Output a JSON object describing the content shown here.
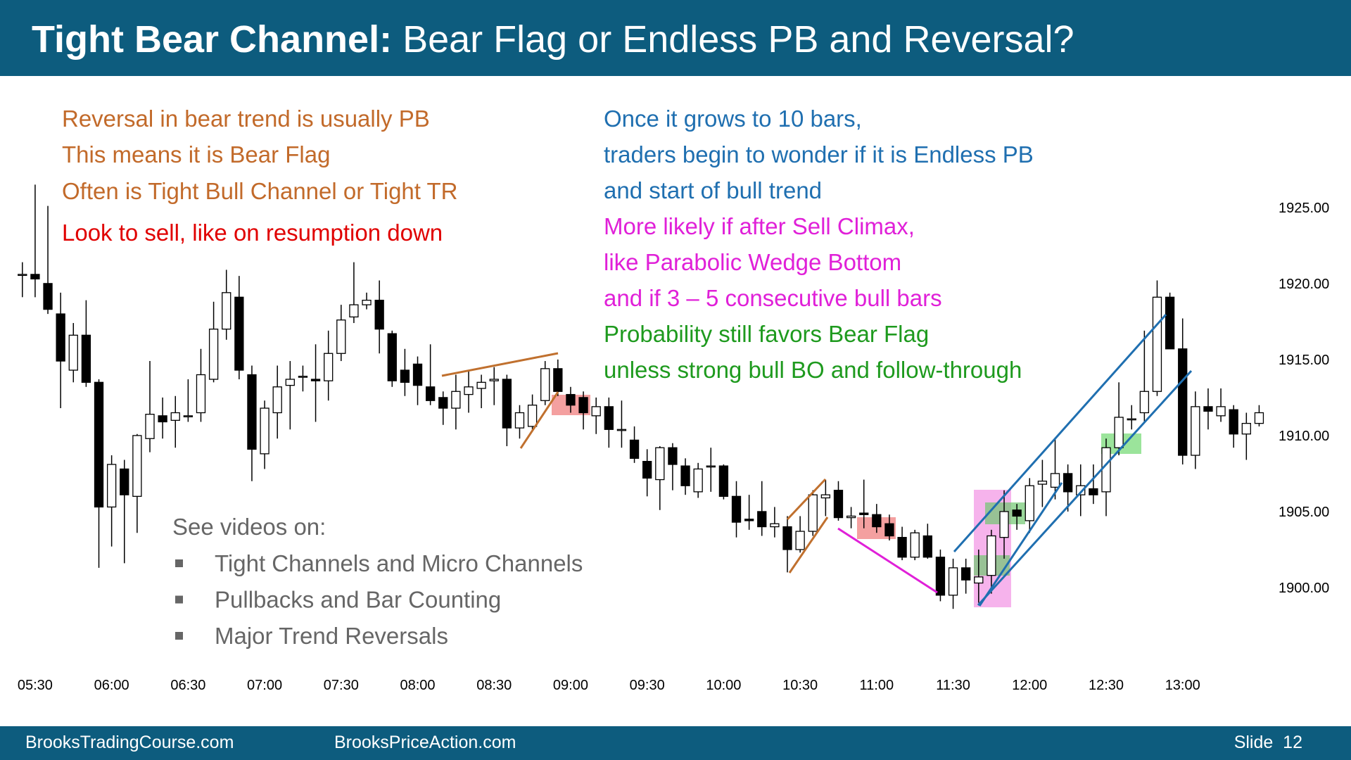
{
  "header": {
    "title_bold": "Tight Bear Channel:",
    "title_rest": " Bear Flag or Endless PB and Reversal?"
  },
  "notes_left": [
    {
      "text": "Reversal in bear trend is usually PB",
      "color": "#c26a2a"
    },
    {
      "text": "This means it is Bear Flag",
      "color": "#c26a2a"
    },
    {
      "text": "Often is Tight Bull Channel or Tight TR",
      "color": "#c26a2a"
    },
    {
      "text": "Look to sell, like on resumption down",
      "color": "#e00000"
    }
  ],
  "notes_right": [
    {
      "text": "Once it grows to 10 bars,",
      "color": "#1f6fb0"
    },
    {
      "text": "traders begin to wonder if it is Endless PB",
      "color": "#1f6fb0"
    },
    {
      "text": "and start of bull trend",
      "color": "#1f6fb0"
    },
    {
      "text": "More likely if after Sell Climax,",
      "color": "#e020d8"
    },
    {
      "text": "like Parabolic Wedge Bottom",
      "color": "#e020d8"
    },
    {
      "text": "and if 3 – 5 consecutive bull bars",
      "color": "#e020d8"
    },
    {
      "text": "Probability still favors Bear Flag",
      "color": "#1e9a1e"
    },
    {
      "text": "unless strong bull BO and follow-through",
      "color": "#1e9a1e"
    }
  ],
  "videos": {
    "heading": "See videos on:",
    "items": [
      "Tight Channels and Micro Channels",
      "Pullbacks and Bar Counting",
      "Major Trend Reversals"
    ]
  },
  "footer": {
    "left": "BrooksTradingCourse.com",
    "middle": "BrooksPriceAction.com",
    "slide": "Slide  12"
  },
  "chart_data": {
    "type": "candlestick",
    "x": [
      null,
      "05:30",
      null,
      null,
      null,
      null,
      null,
      "06:00",
      null,
      null,
      null,
      null,
      null,
      "06:30",
      null,
      null,
      null,
      null,
      null,
      "07:00",
      null,
      null,
      null,
      null,
      null,
      "07:30",
      null,
      null,
      null,
      null,
      null,
      "08:00",
      null,
      null,
      null,
      null,
      null,
      "08:30",
      null,
      null,
      null,
      null,
      null,
      "09:00",
      null,
      null,
      null,
      null,
      null,
      "09:30",
      null,
      null,
      null,
      null,
      null,
      "10:00",
      null,
      null,
      null,
      null,
      null,
      "10:30",
      null,
      null,
      null,
      null,
      null,
      "11:00",
      null,
      null,
      null,
      null,
      null,
      "11:30",
      null,
      null,
      null,
      null,
      null,
      "12:00",
      null,
      null,
      null,
      null,
      null,
      "12:30",
      null,
      null,
      null,
      null,
      null,
      "13:00",
      null,
      null,
      null,
      null,
      null,
      null
    ],
    "open": [
      1920.6,
      1920.6,
      1920.0,
      1918.0,
      1914.3,
      1916.6,
      1913.5,
      1905.3,
      1907.8,
      1906.0,
      1909.8,
      1911.3,
      1911.0,
      1911.3,
      1911.5,
      1913.7,
      1917.0,
      1919.1,
      1914.0,
      1908.8,
      1911.5,
      1913.3,
      1913.9,
      1913.7,
      1913.6,
      1915.4,
      1917.8,
      1918.6,
      1918.9,
      1916.7,
      1914.3,
      1914.7,
      1913.2,
      1912.5,
      1911.8,
      1912.7,
      1913.1,
      1913.6,
      1913.7,
      1910.5,
      1910.6,
      1912.3,
      1914.4,
      1912.7,
      1912.5,
      1911.3,
      1911.9,
      1910.4,
      1909.7,
      1908.3,
      1907.1,
      1909.2,
      1908.0,
      1906.3,
      1908.0,
      1908.0,
      1906.0,
      1904.5,
      1905.0,
      1904.0,
      1904.0,
      1902.5,
      1903.7,
      1905.9,
      1906.4,
      1904.6,
      1904.9,
      1904.8,
      1904.2,
      1903.3,
      1902.0,
      1903.4,
      1902.0,
      1899.5,
      1901.3,
      1900.3,
      1900.8,
      1903.3,
      1905.1,
      1904.4,
      1906.8,
      1906.6,
      1907.5,
      1906.1,
      1906.5,
      1906.3,
      1909.2,
      1911.1,
      1911.5,
      1912.9,
      1919.1,
      1915.7,
      1908.7,
      1911.9,
      1911.3,
      1911.7,
      1910.1,
      1910.8
    ],
    "high": [
      1921.4,
      1926.5,
      1925.1,
      1919.4,
      1917.4,
      1918.9,
      1913.7,
      1908.7,
      1908.4,
      1910.1,
      1914.9,
      1912.5,
      1912.6,
      1913.7,
      1915.7,
      1918.8,
      1920.9,
      1920.5,
      1914.6,
      1912.3,
      1914.6,
      1914.9,
      1914.6,
      1916.0,
      1916.9,
      1918.6,
      1921.4,
      1919.4,
      1920.2,
      1916.9,
      1915.7,
      1915.2,
      1916.0,
      1912.9,
      1914.0,
      1914.3,
      1914.0,
      1914.5,
      1914.0,
      1912.0,
      1912.7,
      1914.9,
      1915.0,
      1913.2,
      1912.9,
      1912.5,
      1912.5,
      1912.3,
      1910.6,
      1909.1,
      1909.3,
      1909.5,
      1908.5,
      1908.2,
      1909.2,
      1908.1,
      1907.0,
      1906.1,
      1907.0,
      1905.3,
      1904.7,
      1904.7,
      1906.4,
      1907.1,
      1907.0,
      1905.3,
      1907.1,
      1905.5,
      1904.8,
      1904.0,
      1903.8,
      1904.2,
      1902.5,
      1901.9,
      1901.9,
      1902.5,
      1903.8,
      1906.4,
      1905.5,
      1907.2,
      1908.4,
      1909.8,
      1908.1,
      1908.1,
      1908.1,
      1909.8,
      1913.5,
      1912.0,
      1916.9,
      1920.2,
      1919.4,
      1917.7,
      1912.9,
      1913.1,
      1913.1,
      1912.0,
      1911.5,
      1912.0
    ],
    "low": [
      1919.1,
      1919.1,
      1918.0,
      1911.8,
      1913.5,
      1913.2,
      1901.3,
      1902.7,
      1901.6,
      1903.6,
      1908.9,
      1909.8,
      1909.2,
      1910.9,
      1910.9,
      1913.5,
      1916.3,
      1913.7,
      1907.0,
      1907.8,
      1909.8,
      1910.4,
      1912.9,
      1910.9,
      1912.3,
      1914.9,
      1917.4,
      1918.3,
      1915.4,
      1913.2,
      1912.6,
      1912.0,
      1912.0,
      1910.7,
      1910.4,
      1911.5,
      1911.8,
      1912.0,
      1909.3,
      1909.8,
      1910.4,
      1912.0,
      1912.6,
      1911.5,
      1910.4,
      1910.1,
      1909.2,
      1909.2,
      1908.2,
      1906.0,
      1905.1,
      1906.4,
      1906.1,
      1905.9,
      1906.3,
      1905.8,
      1903.3,
      1903.8,
      1903.4,
      1903.3,
      1901.0,
      1902.3,
      1903.4,
      1904.7,
      1904.4,
      1903.9,
      1903.9,
      1903.6,
      1903.1,
      1901.8,
      1901.8,
      1901.9,
      1899.1,
      1898.6,
      1899.6,
      1899.0,
      1899.6,
      1901.9,
      1903.8,
      1903.6,
      1905.3,
      1905.8,
      1905.0,
      1904.7,
      1905.5,
      1904.7,
      1908.7,
      1910.4,
      1910.9,
      1912.6,
      1915.7,
      1908.1,
      1907.8,
      1910.4,
      1910.9,
      1909.2,
      1908.4,
      1910.6
    ],
    "close": [
      1920.6,
      1920.3,
      1918.3,
      1914.9,
      1916.6,
      1913.5,
      1905.3,
      1908.1,
      1906.1,
      1910.0,
      1911.4,
      1910.9,
      1911.5,
      1911.3,
      1914.0,
      1917.0,
      1919.4,
      1914.3,
      1909.1,
      1911.8,
      1913.2,
      1913.7,
      1913.9,
      1913.6,
      1915.4,
      1917.6,
      1918.6,
      1918.9,
      1917.0,
      1913.6,
      1913.5,
      1913.3,
      1912.3,
      1911.8,
      1912.9,
      1913.2,
      1913.5,
      1913.7,
      1910.5,
      1911.5,
      1912.0,
      1914.4,
      1912.9,
      1912.0,
      1911.5,
      1911.9,
      1910.4,
      1910.4,
      1908.5,
      1907.2,
      1909.2,
      1908.1,
      1906.7,
      1907.8,
      1908.0,
      1906.0,
      1904.3,
      1904.4,
      1904.0,
      1904.2,
      1902.5,
      1903.7,
      1906.1,
      1906.1,
      1904.6,
      1904.7,
      1904.8,
      1904.0,
      1903.4,
      1902.0,
      1903.6,
      1902.0,
      1899.5,
      1901.3,
      1900.5,
      1900.7,
      1903.4,
      1905.0,
      1904.7,
      1906.7,
      1907.0,
      1907.5,
      1906.3,
      1906.7,
      1906.1,
      1909.2,
      1911.2,
      1911.1,
      1912.9,
      1919.1,
      1915.7,
      1908.7,
      1911.9,
      1911.6,
      1911.9,
      1910.1,
      1910.8,
      1911.5
    ],
    "up_color": "#ffffff",
    "down_color": "#000000",
    "ylim": [
      1895,
      1933
    ],
    "yticks": [
      {
        "value": 1900,
        "label": "1900.00"
      },
      {
        "value": 1905,
        "label": "1905.00"
      },
      {
        "value": 1910,
        "label": "1910.00"
      },
      {
        "value": 1915,
        "label": "1915.00"
      },
      {
        "value": 1920,
        "label": "1920.00"
      },
      {
        "value": 1925,
        "label": "1925.00"
      }
    ]
  }
}
